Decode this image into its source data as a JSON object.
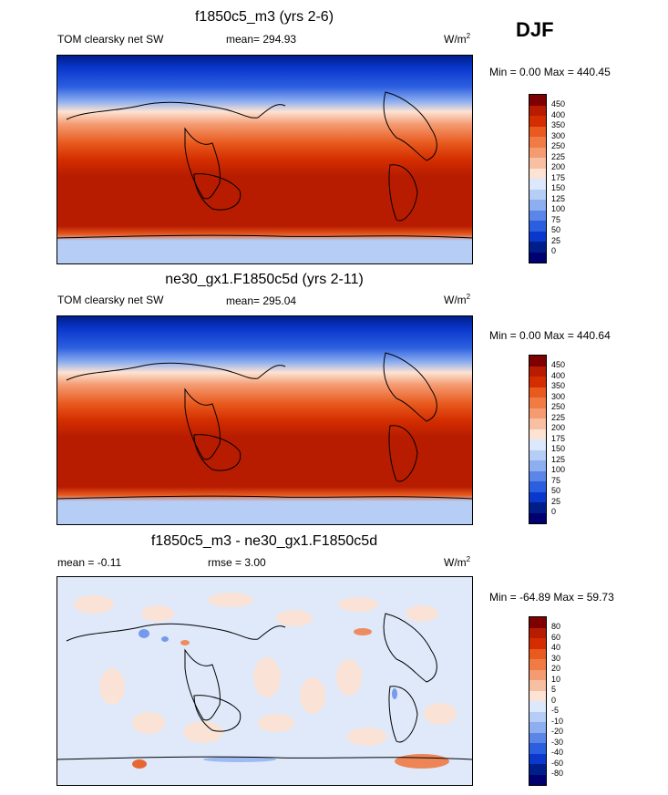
{
  "season": "DJF",
  "panels": [
    {
      "title": "f1850c5_m3 (yrs 2-6)",
      "left_label": "TOM clearsky net SW",
      "center_label": "mean= 294.93",
      "units_base": "W/m",
      "units_sup": "2",
      "minmax": "Min =   0.00 Max = 440.45",
      "colorbar_labels": [
        "450",
        "400",
        "350",
        "300",
        "250",
        "225",
        "200",
        "175",
        "150",
        "125",
        "100",
        "75",
        "50",
        "25",
        "0"
      ]
    },
    {
      "title": "ne30_gx1.F1850c5d (yrs 2-11)",
      "left_label": "TOM clearsky net SW",
      "center_label": "mean= 295.04",
      "units_base": "W/m",
      "units_sup": "2",
      "minmax": "Min =   0.00 Max = 440.64",
      "colorbar_labels": [
        "450",
        "400",
        "350",
        "300",
        "250",
        "225",
        "200",
        "175",
        "150",
        "125",
        "100",
        "75",
        "50",
        "25",
        "0"
      ]
    },
    {
      "title": "f1850c5_m3 - ne30_gx1.F1850c5d",
      "left_label": "mean =  -0.11",
      "center_label": "rmse =   3.00",
      "units_base": "W/m",
      "units_sup": "2",
      "minmax": "Min = -64.89 Max =  59.73",
      "colorbar_labels": [
        "80",
        "60",
        "40",
        "30",
        "20",
        "10",
        "5",
        "0",
        "-5",
        "-10",
        "-20",
        "-30",
        "-40",
        "-60",
        "-80"
      ]
    }
  ],
  "colors": {
    "colorbar": [
      "#7f0000",
      "#b71c00",
      "#d42e00",
      "#e85a1e",
      "#f07b45",
      "#f49b72",
      "#f8c0a3",
      "#fde3d3",
      "#dce8fb",
      "#b6cdf5",
      "#8daeef",
      "#5b86e8",
      "#2c5fe0",
      "#0a37cc",
      "#001e8a",
      "#000070"
    ],
    "diff_bg": "#dfe9fa",
    "diff_pos": "#fde3d3"
  }
}
